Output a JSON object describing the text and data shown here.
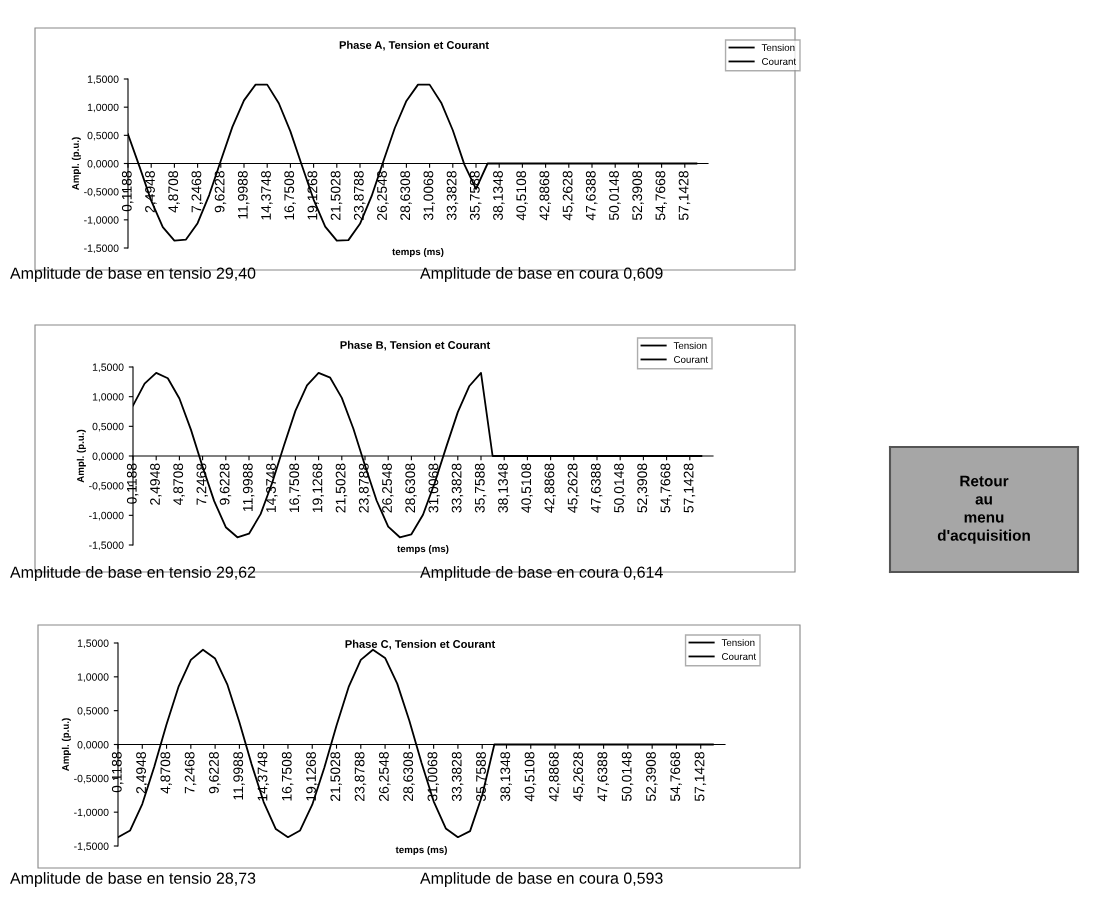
{
  "chart_data": [
    {
      "type": "line",
      "title": "Phase A, Tension et Courant",
      "xlabel": "temps (ms)",
      "ylabel": "Ampl. (p.u.)",
      "categories": [
        "0,1188",
        null,
        "2,4948",
        null,
        "4,8708",
        null,
        "7,2468",
        null,
        "9,6228",
        null,
        "11,9988",
        null,
        "14,3748",
        null,
        "16,7508",
        null,
        "19,1268",
        null,
        "21,5028",
        null,
        "23,8788",
        null,
        "26,2548",
        null,
        "28,6308",
        null,
        "31,0068",
        null,
        "33,3828",
        null,
        "35,7588",
        null,
        "38,1348",
        null,
        "40,5108",
        null,
        "42,8868",
        null,
        "45,2628",
        null,
        "47,6388",
        null,
        "50,0148",
        null,
        "52,3908",
        null,
        "54,7668",
        null,
        "57,1428",
        null
      ],
      "series": [
        {
          "name": "Tension",
          "color": "#000000",
          "values": [
            0.52,
            -0.06,
            -0.66,
            -1.13,
            -1.37,
            -1.35,
            -1.06,
            -0.56,
            0.05,
            0.65,
            1.12,
            1.4,
            1.4,
            1.07,
            0.57,
            -0.04,
            -0.64,
            -1.12,
            -1.37,
            -1.36,
            -1.07,
            -0.58,
            0.03,
            0.63,
            1.11,
            1.4,
            1.4,
            1.08,
            0.59,
            -0.02,
            -0.45,
            0,
            0,
            0,
            0,
            0,
            0,
            0,
            0,
            0,
            0,
            0,
            0,
            0,
            0,
            0,
            0,
            0,
            0,
            0
          ]
        },
        {
          "name": "Courant",
          "color": "#000000",
          "values": [
            null,
            null,
            null,
            null,
            null,
            null,
            null,
            null,
            null,
            null,
            null,
            null,
            null,
            null,
            null,
            null,
            null,
            null,
            null,
            null,
            null,
            null,
            null,
            null,
            null,
            null,
            null,
            null,
            null,
            null,
            null,
            null,
            null,
            null,
            null,
            null,
            null,
            null,
            null,
            null,
            null,
            null,
            null,
            null,
            null,
            null,
            null,
            null,
            null,
            null
          ]
        }
      ],
      "ylim": [
        -1.5,
        1.5
      ],
      "yticks": [
        {
          "value": -1.5,
          "label": "-1,5000"
        },
        {
          "value": -1.0,
          "label": "-1,0000"
        },
        {
          "value": -0.5,
          "label": "-0,5000"
        },
        {
          "value": 0,
          "label": "0,0000"
        },
        {
          "value": 0.5,
          "label": "0,5000"
        },
        {
          "value": 1.0,
          "label": "1,0000"
        },
        {
          "value": 1.5,
          "label": "1,5000"
        }
      ],
      "legend": "top right",
      "grid": false,
      "line_style": "solid",
      "marker": "none",
      "annotations": [
        "Amplitude de base en tensio 29,40",
        "Amplitude de base en coura 0,609"
      ]
    },
    {
      "type": "line",
      "title": "Phase B, Tension et Courant",
      "xlabel": "temps (ms)",
      "ylabel": "Ampl. (p.u.)",
      "categories": [
        "0,1188",
        null,
        "2,4948",
        null,
        "4,8708",
        null,
        "7,2468",
        null,
        "9,6228",
        null,
        "11,9988",
        null,
        "14,3748",
        null,
        "16,7508",
        null,
        "19,1268",
        null,
        "21,5028",
        null,
        "23,8788",
        null,
        "26,2548",
        null,
        "28,6308",
        null,
        "31,0068",
        null,
        "33,3828",
        null,
        "35,7588",
        null,
        "38,1348",
        null,
        "40,5108",
        null,
        "42,8868",
        null,
        "45,2628",
        null,
        "47,6388",
        null,
        "50,0148",
        null,
        "52,3908",
        null,
        "54,7668",
        null,
        "57,1428",
        null
      ],
      "series": [
        {
          "name": "Tension",
          "color": "#000000",
          "values": [
            0.85,
            1.22,
            1.4,
            1.31,
            0.97,
            0.44,
            -0.18,
            -0.76,
            -1.2,
            -1.37,
            -1.31,
            -0.98,
            -0.45,
            0.17,
            0.76,
            1.19,
            1.4,
            1.32,
            0.98,
            0.46,
            -0.16,
            -0.75,
            -1.19,
            -1.37,
            -1.32,
            -0.99,
            -0.46,
            0.15,
            0.74,
            1.18,
            1.4,
            0,
            0,
            0,
            0,
            0,
            0,
            0,
            0,
            0,
            0,
            0,
            0,
            0,
            0,
            0,
            0,
            0,
            0,
            0
          ]
        },
        {
          "name": "Courant",
          "color": "#000000",
          "values": [
            null,
            null,
            null,
            null,
            null,
            null,
            null,
            null,
            null,
            null,
            null,
            null,
            null,
            null,
            null,
            null,
            null,
            null,
            null,
            null,
            null,
            null,
            null,
            null,
            null,
            null,
            null,
            null,
            null,
            null,
            null,
            null,
            null,
            null,
            null,
            null,
            null,
            null,
            null,
            null,
            null,
            null,
            null,
            null,
            null,
            null,
            null,
            null,
            null,
            null
          ]
        }
      ],
      "ylim": [
        -1.5,
        1.5
      ],
      "yticks": [
        {
          "value": -1.5,
          "label": "-1,5000"
        },
        {
          "value": -1.0,
          "label": "-1,0000"
        },
        {
          "value": -0.5,
          "label": "-0,5000"
        },
        {
          "value": 0,
          "label": "0,0000"
        },
        {
          "value": 0.5,
          "label": "0,5000"
        },
        {
          "value": 1.0,
          "label": "1,0000"
        },
        {
          "value": 1.5,
          "label": "1,5000"
        }
      ],
      "legend": "top right",
      "grid": false,
      "line_style": "solid",
      "marker": "none",
      "annotations": [
        "Amplitude de base en tensio 29,62",
        "Amplitude de base en coura 0,614"
      ]
    },
    {
      "type": "line",
      "title": "Phase C, Tension et Courant",
      "xlabel": "temps (ms)",
      "ylabel": "Ampl. (p.u.)",
      "categories": [
        "0,1188",
        null,
        "2,4948",
        null,
        "4,8708",
        null,
        "7,2468",
        null,
        "9,6228",
        null,
        "11,9988",
        null,
        "14,3748",
        null,
        "16,7508",
        null,
        "19,1268",
        null,
        "21,5028",
        null,
        "23,8788",
        null,
        "26,2548",
        null,
        "28,6308",
        null,
        "31,0068",
        null,
        "33,3828",
        null,
        "35,7588",
        null,
        "38,1348",
        null,
        "40,5108",
        null,
        "42,8868",
        null,
        "45,2628",
        null,
        "47,6388",
        null,
        "50,0148",
        null,
        "52,3908",
        null,
        "54,7668",
        null,
        "57,1428",
        null
      ],
      "series": [
        {
          "name": "Tension",
          "color": "#000000",
          "values": [
            -1.37,
            -1.27,
            -0.88,
            -0.32,
            0.3,
            0.86,
            1.25,
            1.4,
            1.27,
            0.89,
            0.33,
            -0.29,
            -0.85,
            -1.25,
            -1.37,
            -1.27,
            -0.89,
            -0.34,
            0.28,
            0.85,
            1.25,
            1.4,
            1.28,
            0.9,
            0.35,
            -0.27,
            -0.84,
            -1.24,
            -1.37,
            -1.28,
            -0.75,
            0,
            0,
            0,
            0,
            0,
            0,
            0,
            0,
            0,
            0,
            0,
            0,
            0,
            0,
            0,
            0,
            0,
            0,
            0
          ]
        },
        {
          "name": "Courant",
          "color": "#000000",
          "values": [
            null,
            null,
            null,
            null,
            null,
            null,
            null,
            null,
            null,
            null,
            null,
            null,
            null,
            null,
            null,
            null,
            null,
            null,
            null,
            null,
            null,
            null,
            null,
            null,
            null,
            null,
            null,
            null,
            null,
            null,
            null,
            null,
            null,
            null,
            null,
            null,
            null,
            null,
            null,
            null,
            null,
            null,
            null,
            null,
            null,
            null,
            null,
            null,
            null,
            null
          ]
        }
      ],
      "ylim": [
        -1.5,
        1.5
      ],
      "yticks": [
        {
          "value": -1.5,
          "label": "-1,5000"
        },
        {
          "value": -1.0,
          "label": "-1,0000"
        },
        {
          "value": -0.5,
          "label": "-0,5000"
        },
        {
          "value": 0,
          "label": "0,0000"
        },
        {
          "value": 0.5,
          "label": "0,5000"
        },
        {
          "value": 1.0,
          "label": "1,0000"
        },
        {
          "value": 1.5,
          "label": "1,5000"
        }
      ],
      "legend": "top right",
      "grid": false,
      "line_style": "solid",
      "marker": "none",
      "annotations": [
        "Amplitude de base en tensio 28,73",
        "Amplitude de base en coura 0,593"
      ]
    },
    {
      "type": "other",
      "annotations": [
        "Retour\nau\nmenu\nd'acquisition"
      ]
    }
  ]
}
